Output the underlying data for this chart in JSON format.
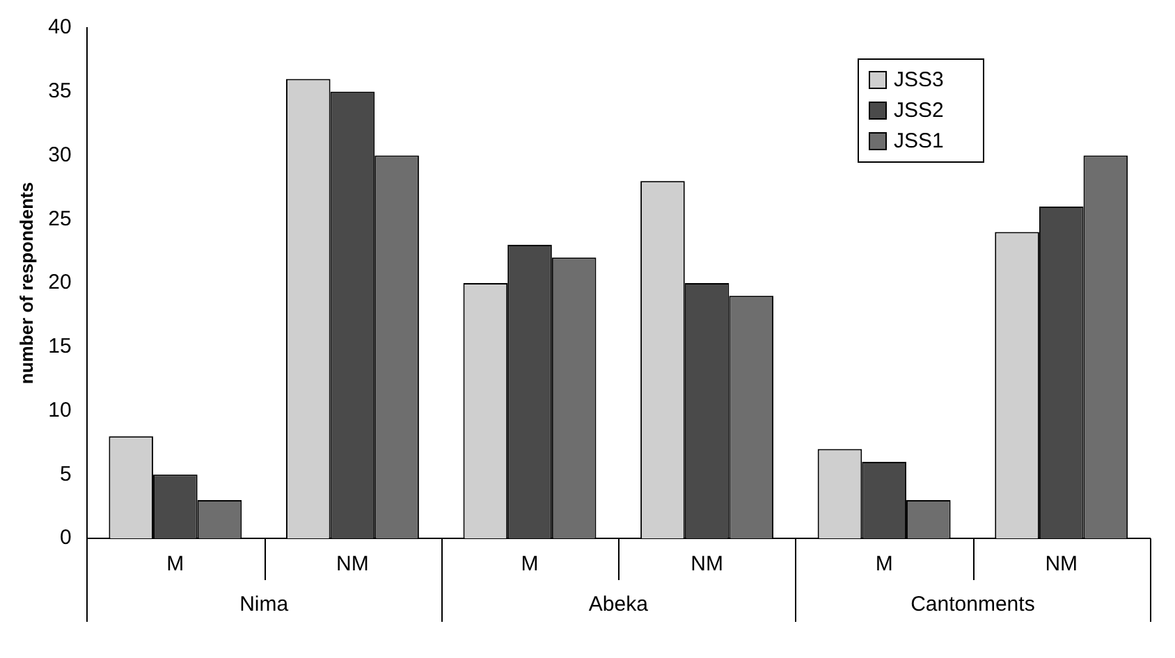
{
  "chart_data": {
    "type": "bar",
    "ylabel": "number of respondents",
    "categories": [
      "M",
      "NM",
      "M",
      "NM",
      "M",
      "NM"
    ],
    "series": [
      {
        "name": "JSS3",
        "color": "#cfcfcf",
        "values": [
          8,
          36,
          20,
          28,
          7,
          24
        ]
      },
      {
        "name": "JSS2",
        "color": "#4a4a4a",
        "values": [
          5,
          35,
          23,
          20,
          6,
          26
        ]
      },
      {
        "name": "JSS1",
        "color": "#6e6e6e",
        "values": [
          3,
          30,
          22,
          19,
          3,
          30
        ]
      }
    ],
    "annotations": [
      "Nima",
      "Abeka",
      "Cantonments"
    ],
    "ylim": [
      0,
      40
    ],
    "yticks": [
      0,
      5,
      10,
      15,
      20,
      25,
      30,
      35,
      40
    ],
    "grid": false,
    "legend": "top right"
  }
}
